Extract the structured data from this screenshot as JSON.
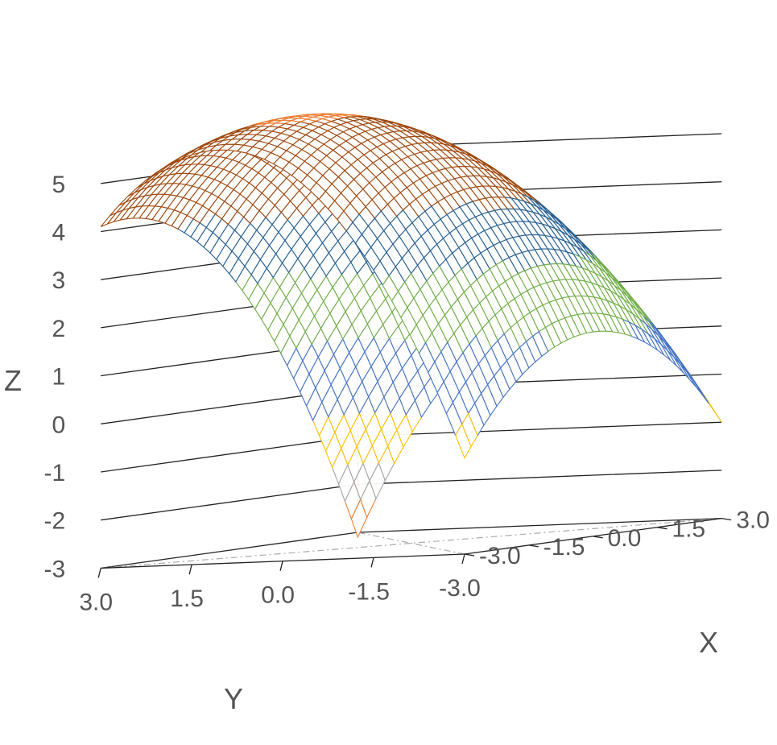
{
  "chart_data": {
    "type": "surface3d",
    "title": "",
    "xlabel": "X",
    "ylabel": "Y",
    "zlabel": "Z",
    "xlim": [
      -3.0,
      3.0
    ],
    "ylim": [
      -3.0,
      3.0
    ],
    "zlim": [
      -3,
      5
    ],
    "x_ticks": [
      "3.0",
      "1.5",
      "0.0",
      "-1.5",
      "-3.0"
    ],
    "y_ticks": [
      "3.0",
      "1.5",
      "0.0",
      "-1.5",
      "-3.0"
    ],
    "z_ticks": [
      "5",
      "4",
      "3",
      "2",
      "1",
      "0",
      "-1",
      "-2",
      "-3"
    ],
    "grid": true,
    "surface": {
      "function": "z = 5.6 - 0.4*y^2 + 0.25*y - 0.25*x^2 - 0.6*x - 0.2*y*x",
      "x_range": [
        -3.0,
        3.0
      ],
      "y_range": [
        -3.0,
        3.0
      ],
      "samples": 40
    },
    "contour_bands": [
      {
        "z_min": 4.0,
        "z_max": 6.0,
        "color": "#9E480E"
      },
      {
        "z_min": 2.7,
        "z_max": 4.0,
        "color": "#255E91"
      },
      {
        "z_min": 1.2,
        "z_max": 2.7,
        "color": "#70AD47"
      },
      {
        "z_min": -0.4,
        "z_max": 1.2,
        "color": "#4472C4"
      },
      {
        "z_min": -1.4,
        "z_max": -0.4,
        "color": "#FFC000"
      },
      {
        "z_min": -2.2,
        "z_max": -1.4,
        "color": "#A5A5A5"
      },
      {
        "z_min": -9.0,
        "z_max": -2.2,
        "color": "#ED7D31"
      }
    ],
    "colors": {
      "grid_line": "#222222",
      "floor_line": "#aaaaaa",
      "tick_text": "#555555"
    }
  }
}
